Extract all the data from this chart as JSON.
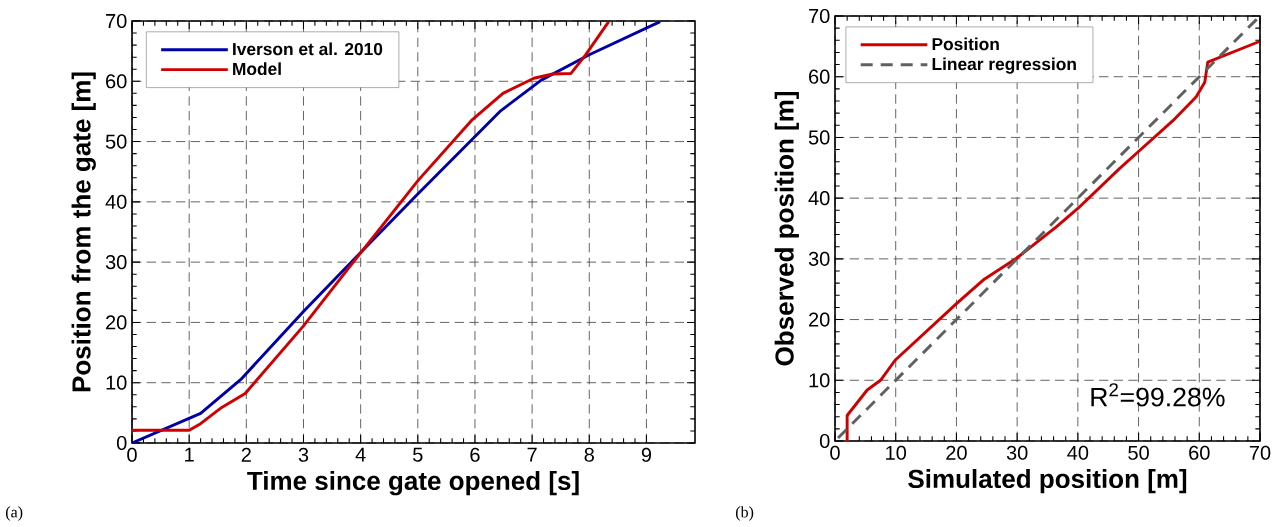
{
  "chart_data": [
    {
      "type": "line",
      "xlabel": "Time since gate opened [s]",
      "ylabel": "Position from the gate [m]",
      "xlim": [
        0,
        9.85
      ],
      "ylim": [
        0,
        70
      ],
      "xticks": [
        0,
        1,
        2,
        3,
        4,
        5,
        6,
        7,
        8,
        9
      ],
      "yticks": [
        0,
        10,
        20,
        30,
        40,
        50,
        60,
        70
      ],
      "grid": true,
      "legend": "top left",
      "annotations": [
        "(a)"
      ],
      "series": [
        {
          "name": "Iverson et al. 2010",
          "color": "#0000a8",
          "line_style": "solid",
          "x": [
            0,
            1.2,
            1.9,
            3,
            4,
            5,
            6.45,
            7.16,
            8,
            9.24
          ],
          "values": [
            0,
            4.9,
            10.5,
            21.8,
            31.6,
            41.3,
            55.1,
            60.2,
            64.4,
            69.9
          ]
        },
        {
          "name": "Model",
          "color": "#d00000",
          "line_style": "solid",
          "x": [
            0,
            1.0,
            1.2,
            1.57,
            1.98,
            2.99,
            3.83,
            5.01,
            5.94,
            6.49,
            7.03,
            7.36,
            7.68,
            7.93,
            8.34
          ],
          "values": [
            2.1,
            2.1,
            3.2,
            5.9,
            8.2,
            19.3,
            29.5,
            43.6,
            53.5,
            58.0,
            60.5,
            61.2,
            61.3,
            64.3,
            69.9
          ]
        }
      ]
    },
    {
      "type": "line",
      "xlabel": "Simulated position [m]",
      "ylabel": "Observed position [m]",
      "xlim": [
        0,
        70
      ],
      "ylim": [
        0,
        70
      ],
      "xticks": [
        0,
        10,
        20,
        30,
        40,
        50,
        60,
        70
      ],
      "yticks": [
        0,
        10,
        20,
        30,
        40,
        50,
        60,
        70
      ],
      "grid": true,
      "legend": "top left",
      "annotations": [
        "R$^{2}$=99.28%",
        "(b)"
      ],
      "series": [
        {
          "name": "Position",
          "color": "#d00000",
          "line_style": "solid",
          "x": [
            2.0,
            2.0,
            5.3,
            7.5,
            9.9,
            20.1,
            24.4,
            29.9,
            36.5,
            40.0,
            46.9,
            49.9,
            55.7,
            59.5,
            60.9,
            61.4,
            69.9
          ],
          "values": [
            0,
            4.2,
            8.4,
            10.0,
            13.3,
            22.7,
            26.5,
            30.1,
            35.3,
            38.3,
            44.9,
            47.6,
            52.8,
            56.7,
            59.1,
            62.4,
            65.8
          ]
        },
        {
          "name": "Linear regression",
          "color": "#606060",
          "line_style": "dashed",
          "x": [
            0.5,
            70
          ],
          "values": [
            0.5,
            70
          ]
        }
      ]
    }
  ]
}
